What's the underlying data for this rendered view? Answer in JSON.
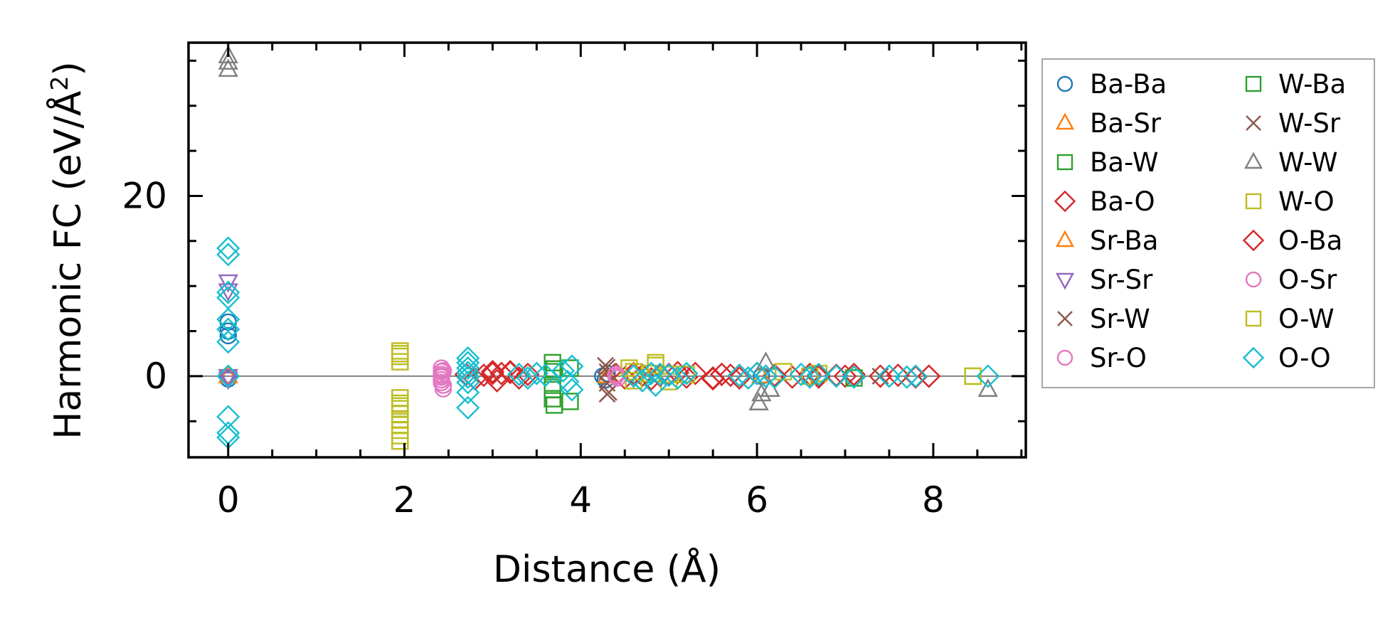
{
  "chart_data": {
    "type": "scatter",
    "title": "",
    "xlabel": "Distance (Å)",
    "ylabel_main": "Harmonic FC (eV/Å",
    "ylabel_sup": "2",
    "ylabel_close": ")",
    "xlim": [
      -0.45,
      9.05
    ],
    "ylim": [
      -9,
      37
    ],
    "xticks": [
      0,
      2,
      4,
      6,
      8
    ],
    "xtick_labels": [
      "0",
      "2",
      "4",
      "6",
      "8"
    ],
    "yticks": [
      0,
      20
    ],
    "ytick_labels": [
      "0",
      "20"
    ],
    "zero_line": true,
    "grid": false,
    "legend_position": "outside-right",
    "series": [
      {
        "name": "Ba-Ba",
        "marker": "circle",
        "color": "#1f77b4",
        "x": [
          0,
          0,
          0,
          0,
          4.25,
          4.28,
          4.3,
          6.05
        ],
        "y": [
          5,
          6,
          4.5,
          -0.3,
          0,
          -0.4,
          0.3,
          0
        ]
      },
      {
        "name": "Ba-Sr",
        "marker": "triangle-up",
        "color": "#ff7f0e",
        "x": [
          0,
          4.3,
          6.05
        ],
        "y": [
          0,
          0,
          0
        ]
      },
      {
        "name": "Ba-W",
        "marker": "square",
        "color": "#2ca02c",
        "x": [
          3.68,
          3.68,
          3.68,
          3.68,
          3.7
        ],
        "y": [
          1.5,
          0.5,
          -1,
          -2.5,
          0.8
        ]
      },
      {
        "name": "Ba-O",
        "marker": "diamond",
        "color": "#d62728",
        "x": [
          2.7,
          2.8,
          2.9,
          3.0,
          3.05,
          3.1,
          3.2,
          3.3,
          3.4,
          4.4,
          4.5,
          4.6,
          4.7,
          4.8,
          5.0,
          5.1,
          5.2,
          5.3,
          5.5,
          5.6,
          5.7,
          5.8,
          6.0,
          6.2,
          6.4,
          6.6,
          6.7,
          6.9,
          7.0,
          7.1,
          7.4,
          7.6,
          7.8,
          7.95
        ],
        "y": [
          0.2,
          -0.3,
          0.1,
          0.5,
          -0.5,
          0.3,
          0.4,
          -0.2,
          0.2,
          0.2,
          -0.2,
          0.3,
          0.1,
          -0.3,
          0.2,
          0.4,
          -0.1,
          0.3,
          -0.3,
          0.2,
          0.1,
          -0.2,
          0.3,
          0.1,
          -0.1,
          0.2,
          -0.1,
          0.1,
          0,
          0.2,
          0,
          0.1,
          -0.1,
          0
        ]
      },
      {
        "name": "Sr-Ba",
        "marker": "triangle-up",
        "color": "#ff7f0e",
        "x": [
          4.3,
          6.05
        ],
        "y": [
          0,
          0
        ]
      },
      {
        "name": "Sr-Sr",
        "marker": "triangle-down",
        "color": "#9467bd",
        "x": [
          0,
          0,
          0,
          0
        ],
        "y": [
          10.5,
          9.5,
          0,
          -0.3
        ]
      },
      {
        "name": "Sr-W",
        "marker": "x",
        "color": "#8c564b",
        "x": [
          4.28,
          4.3,
          4.3,
          4.32,
          7.4
        ],
        "y": [
          1.2,
          0.5,
          -0.8,
          -1.8,
          0
        ]
      },
      {
        "name": "Sr-O",
        "marker": "circle",
        "color": "#e377c2",
        "x": [
          2.42,
          2.42,
          2.42,
          2.42,
          2.42,
          2.42,
          2.44,
          2.44,
          2.44,
          4.4
        ],
        "y": [
          0.9,
          0.5,
          0.2,
          -0.1,
          -0.4,
          -0.7,
          -1.0,
          -1.4,
          0.6,
          0
        ]
      },
      {
        "name": "W-Ba",
        "marker": "square",
        "color": "#2ca02c",
        "x": [
          3.68,
          3.7,
          3.88,
          3.88,
          7.1
        ],
        "y": [
          -1.5,
          -3.2,
          -2.8,
          0.9,
          -0.2
        ]
      },
      {
        "name": "W-Sr",
        "marker": "x",
        "color": "#8c564b",
        "x": [
          4.3,
          4.3,
          7.4
        ],
        "y": [
          1.0,
          -2.0,
          0
        ]
      },
      {
        "name": "W-W",
        "marker": "triangle-up",
        "color": "#7f7f7f",
        "x": [
          0,
          0,
          0,
          6.02,
          6.05,
          6.1,
          6.15,
          8.62
        ],
        "y": [
          35.5,
          34.8,
          34,
          -3,
          -2,
          1.5,
          -1.5,
          -1.5
        ]
      },
      {
        "name": "W-O",
        "marker": "square",
        "color": "#bcbd22",
        "x": [
          1.95,
          1.95,
          1.95,
          1.95,
          1.95,
          1.95,
          1.95,
          1.95,
          1.95,
          1.95,
          1.95,
          1.95,
          4.55,
          4.6,
          4.8,
          4.85,
          5.0,
          5.2,
          6.3,
          6.6,
          6.7,
          8.45
        ],
        "y": [
          2.8,
          2.2,
          1.6,
          -2.4,
          -3.0,
          -3.6,
          -4.2,
          -4.8,
          -5.4,
          -6.0,
          -6.6,
          -7.2,
          0.9,
          -0.5,
          0.3,
          1.5,
          -0.6,
          0.2,
          0.5,
          0,
          0.3,
          0
        ]
      },
      {
        "name": "O-Ba",
        "marker": "diamond",
        "color": "#d62728",
        "x": [
          3.0,
          3.2,
          4.9,
          5.5,
          5.6,
          6.7,
          7.95
        ],
        "y": [
          0.3,
          0.5,
          0.1,
          -0.2,
          0.2,
          0.1,
          0
        ]
      },
      {
        "name": "O-Sr",
        "marker": "circle",
        "color": "#e377c2",
        "x": [
          2.42,
          2.44,
          4.4,
          4.42
        ],
        "y": [
          0,
          0.6,
          0.2,
          -0.2
        ]
      },
      {
        "name": "O-W",
        "marker": "square",
        "color": "#bcbd22",
        "x": [
          1.95,
          1.95,
          4.6,
          4.85,
          5.0,
          8.45
        ],
        "y": [
          2.5,
          -3.3,
          0.5,
          1.2,
          0.2,
          0
        ]
      },
      {
        "name": "O-O",
        "marker": "diamond",
        "color": "#17becf",
        "x": [
          0,
          0,
          0,
          0,
          0,
          0,
          0,
          0,
          0,
          0,
          0,
          2.72,
          2.72,
          2.72,
          2.72,
          2.72,
          2.72,
          2.72,
          2.72,
          3.3,
          3.4,
          3.5,
          3.6,
          3.8,
          3.85,
          3.9,
          3.9,
          4.6,
          4.7,
          4.8,
          4.85,
          4.9,
          5.0,
          5.1,
          5.2,
          5.8,
          5.9,
          6.0,
          6.1,
          6.2,
          6.5,
          6.6,
          6.7,
          6.9,
          7.1,
          7.5,
          7.7,
          7.8,
          8.62
        ],
        "y": [
          14.2,
          13.5,
          9.3,
          8.7,
          6.3,
          5.2,
          3.8,
          -4.5,
          -6.3,
          -6.8,
          0,
          2.0,
          1.5,
          0.9,
          0.4,
          -0.1,
          -0.7,
          -1.8,
          -3.5,
          0.2,
          -0.2,
          0.3,
          0.1,
          0.6,
          -0.6,
          1.1,
          -1.5,
          0,
          -0.5,
          0.3,
          -1.0,
          0.2,
          0.1,
          -0.2,
          0.3,
          0.1,
          -0.2,
          0.3,
          0,
          -0.1,
          0.2,
          -0.1,
          0.2,
          0,
          -0.1,
          0,
          -0.1,
          0,
          0
        ]
      }
    ]
  }
}
